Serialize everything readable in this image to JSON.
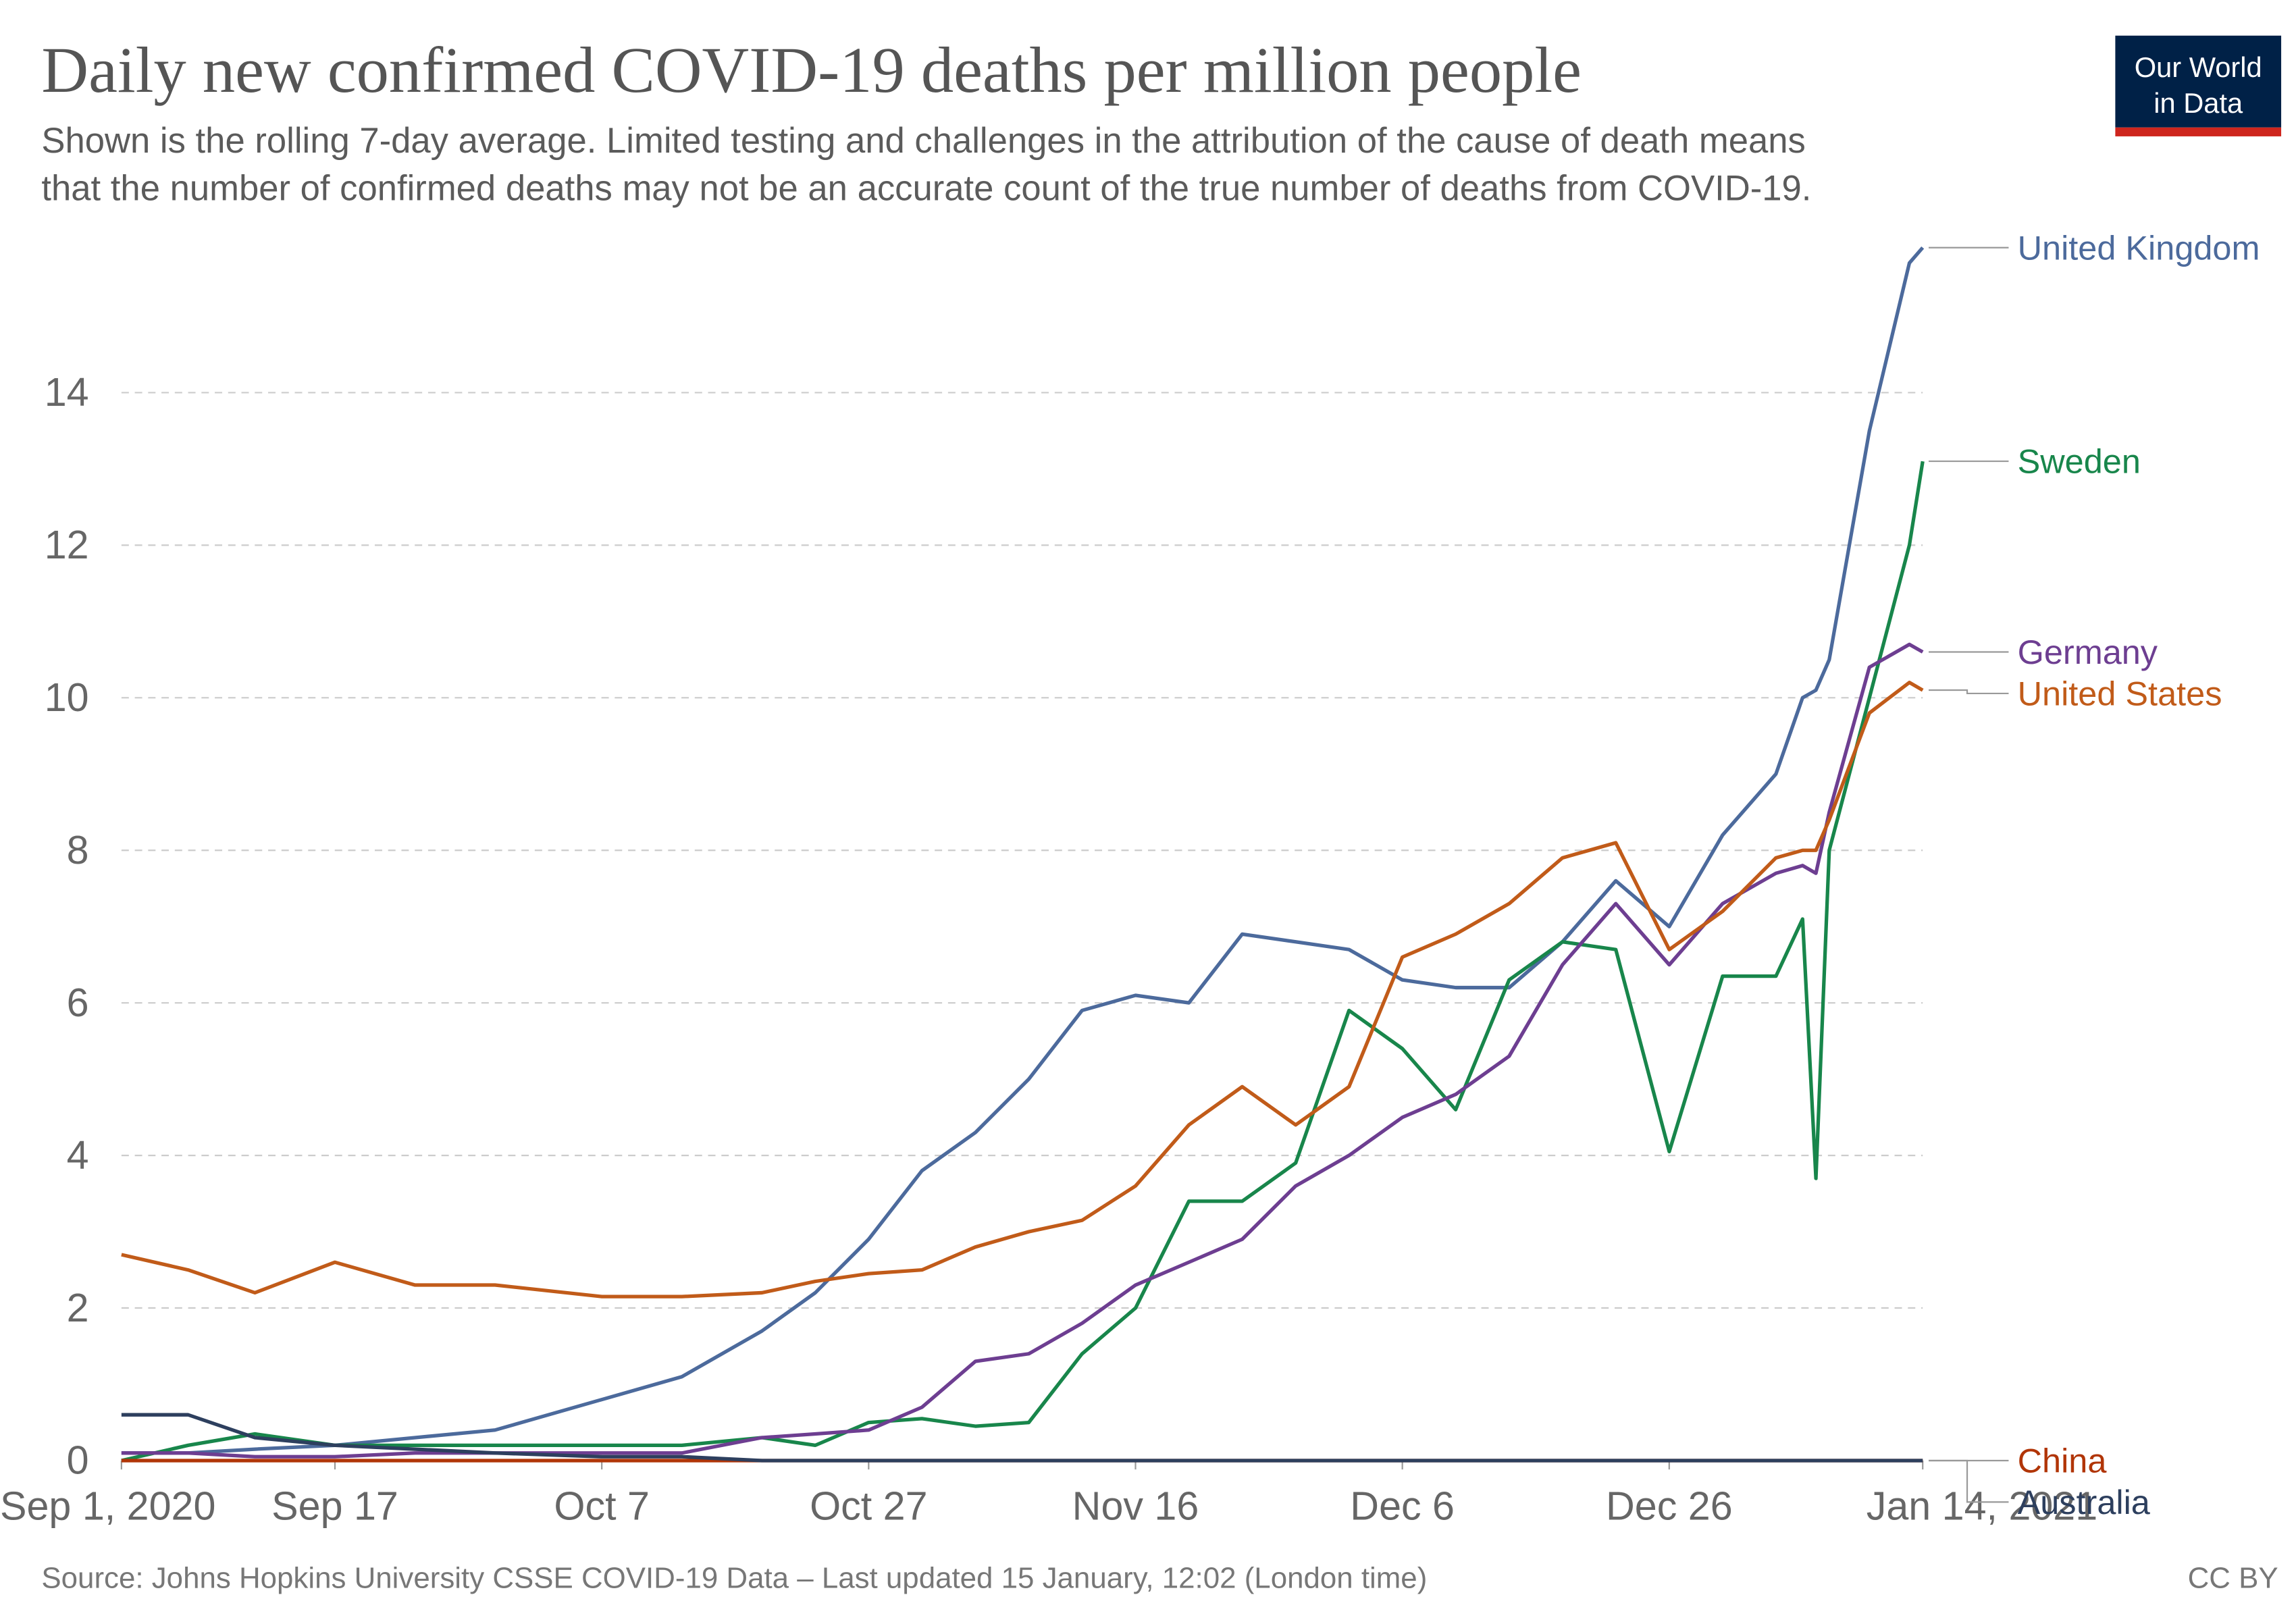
{
  "chart_data": {
    "type": "line",
    "title": "Daily new confirmed COVID-19 deaths per million people",
    "subtitle": [
      "Shown is the rolling 7-day average. Limited testing and challenges in the attribution of the cause of death means",
      "that the number of confirmed deaths may not be an accurate count of the true number of deaths from COVID-19."
    ],
    "logo": [
      "Our World",
      "in Data"
    ],
    "source": "Source: Johns Hopkins University CSSE COVID-19 Data – Last updated 15 January, 12:02 (London time)",
    "license": "CC BY",
    "x": [
      "2020-09-01",
      "2020-09-06",
      "2020-09-11",
      "2020-09-17",
      "2020-09-23",
      "2020-09-29",
      "2020-10-07",
      "2020-10-13",
      "2020-10-19",
      "2020-10-23",
      "2020-10-27",
      "2020-10-31",
      "2020-11-04",
      "2020-11-08",
      "2020-11-12",
      "2020-11-16",
      "2020-11-20",
      "2020-11-24",
      "2020-11-28",
      "2020-12-02",
      "2020-12-06",
      "2020-12-10",
      "2020-12-14",
      "2020-12-18",
      "2020-12-22",
      "2020-12-26",
      "2020-12-30",
      "2021-01-03",
      "2021-01-05",
      "2021-01-06",
      "2021-01-07",
      "2021-01-10",
      "2021-01-13",
      "2021-01-14"
    ],
    "xlim": [
      "2020-09-01",
      "2021-01-14"
    ],
    "xticks": [
      {
        "value": "2020-09-01",
        "label": "Sep 1, 2020"
      },
      {
        "value": "2020-09-17",
        "label": "Sep 17"
      },
      {
        "value": "2020-10-07",
        "label": "Oct 7"
      },
      {
        "value": "2020-10-27",
        "label": "Oct 27"
      },
      {
        "value": "2020-11-16",
        "label": "Nov 16"
      },
      {
        "value": "2020-12-06",
        "label": "Dec 6"
      },
      {
        "value": "2020-12-26",
        "label": "Dec 26"
      },
      {
        "value": "2021-01-14",
        "label": "Jan 14, 2021"
      }
    ],
    "ylim": [
      0,
      16
    ],
    "yticks": [
      0,
      2,
      4,
      6,
      8,
      10,
      12,
      14
    ],
    "grid": true,
    "series": [
      {
        "name": "United Kingdom",
        "color": "#4c6a9c",
        "values": [
          0.1,
          0.1,
          0.15,
          0.2,
          0.3,
          0.4,
          0.8,
          1.1,
          1.7,
          2.2,
          2.9,
          3.8,
          4.3,
          5.0,
          5.9,
          6.1,
          6.0,
          6.9,
          6.8,
          6.7,
          6.3,
          6.2,
          6.2,
          6.8,
          7.6,
          7.0,
          8.2,
          9.0,
          10.0,
          10.1,
          10.5,
          13.5,
          15.7,
          15.9
        ]
      },
      {
        "name": "Sweden",
        "color": "#18864b",
        "values": [
          0,
          0.2,
          0.35,
          0.2,
          0.2,
          0.2,
          0.2,
          0.2,
          0.3,
          0.2,
          0.5,
          0.55,
          0.45,
          0.5,
          1.4,
          2.0,
          3.4,
          3.4,
          3.9,
          5.9,
          5.4,
          4.6,
          6.3,
          6.8,
          6.7,
          4.05,
          6.35,
          6.35,
          7.1,
          3.7,
          8.0,
          10.0,
          12.0,
          13.1
        ]
      },
      {
        "name": "Germany",
        "color": "#6d3e91",
        "values": [
          0.1,
          0.1,
          0.05,
          0.05,
          0.1,
          0.1,
          0.1,
          0.1,
          0.3,
          0.35,
          0.4,
          0.7,
          1.3,
          1.4,
          1.8,
          2.3,
          2.6,
          2.9,
          3.6,
          4.0,
          4.5,
          4.8,
          5.3,
          6.5,
          7.3,
          6.5,
          7.3,
          7.7,
          7.8,
          7.7,
          8.5,
          10.4,
          10.7,
          10.6
        ]
      },
      {
        "name": "United States",
        "color": "#c15b19",
        "values": [
          2.7,
          2.5,
          2.2,
          2.6,
          2.3,
          2.3,
          2.15,
          2.15,
          2.2,
          2.35,
          2.45,
          2.5,
          2.8,
          3.0,
          3.15,
          3.6,
          4.4,
          4.9,
          4.4,
          4.9,
          6.6,
          6.9,
          7.3,
          7.9,
          8.1,
          6.7,
          7.2,
          7.9,
          8.0,
          8.0,
          8.4,
          9.8,
          10.2,
          10.1
        ]
      },
      {
        "name": "China",
        "color": "#b13507",
        "values": [
          0,
          0,
          0,
          0,
          0,
          0,
          0,
          0,
          0,
          0,
          0,
          0,
          0,
          0,
          0,
          0,
          0,
          0,
          0,
          0,
          0,
          0,
          0,
          0,
          0,
          0,
          0,
          0,
          0,
          0,
          0,
          0,
          0,
          0
        ]
      },
      {
        "name": "Australia",
        "color": "#2d3f5e",
        "values": [
          0.6,
          0.6,
          0.3,
          0.2,
          0.15,
          0.1,
          0.05,
          0.05,
          0,
          0,
          0,
          0,
          0,
          0,
          0,
          0,
          0,
          0,
          0,
          0,
          0,
          0,
          0,
          0,
          0,
          0,
          0,
          0,
          0,
          0,
          0,
          0,
          0,
          0
        ]
      }
    ]
  }
}
